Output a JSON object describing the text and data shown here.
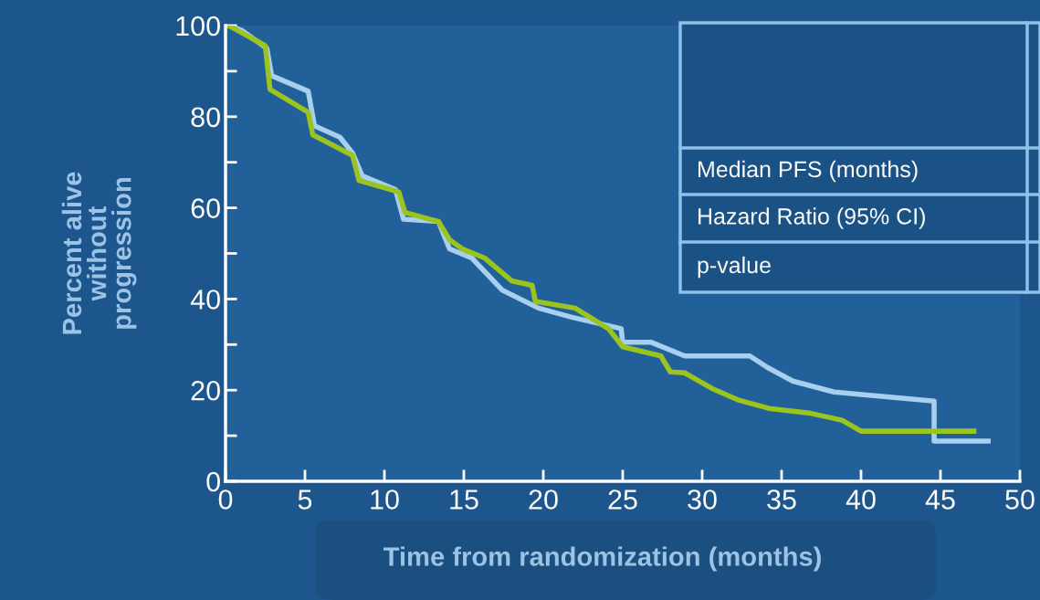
{
  "chart_data": {
    "type": "line",
    "xlabel": "Time from randomization (months)",
    "ylabel": "Percent alive\nwithout\nprogression",
    "xlim": [
      0,
      50
    ],
    "xticks": [
      0,
      5,
      10,
      15,
      20,
      25,
      30,
      35,
      40,
      45,
      50
    ],
    "ylim": [
      0,
      100
    ],
    "yticks": [
      0,
      {
        "value": 10,
        "label": null
      },
      20,
      {
        "value": 30,
        "label": null
      },
      40,
      {
        "value": 50,
        "label": null
      },
      60,
      {
        "value": 70,
        "label": null
      },
      80,
      {
        "value": 90,
        "label": null
      },
      100
    ],
    "series": [
      {
        "color": "#a9cfee",
        "x": [
          0,
          0.2,
          1,
          2.6,
          2.9,
          5.2,
          5.6,
          7.2,
          8,
          8.6,
          10.7,
          11.2,
          13.4,
          14.1,
          15.5,
          17.4,
          19.7,
          21.8,
          24.9,
          25,
          26.8,
          28.9,
          33.0,
          34.1,
          35.7,
          38.3,
          44.6,
          44.6,
          48
        ],
        "values": [
          100,
          100,
          99,
          95,
          89,
          85.6,
          78,
          75.5,
          72,
          67,
          64,
          57.5,
          57,
          51,
          49,
          42,
          38,
          36,
          33.5,
          30.5,
          30.5,
          27.5,
          27.5,
          25,
          22,
          19.6,
          17.6,
          8.8,
          8.8
        ]
      },
      {
        "color": "#9cc41e",
        "x": [
          0,
          0.2,
          2.5,
          2.8,
          5.2,
          5.5,
          8,
          8.4,
          10.9,
          11.3,
          13.4,
          14.1,
          14.9,
          16.3,
          18,
          19.3,
          19.5,
          22,
          24.1,
          25,
          27.4,
          28,
          28.9,
          30.6,
          32.3,
          34.2,
          36.7,
          38.8,
          40,
          47.1
        ],
        "values": [
          100,
          100,
          95.6,
          86,
          81,
          76,
          71.5,
          66,
          63.5,
          59,
          57,
          53,
          51,
          49,
          44,
          43,
          39.5,
          38,
          33.5,
          29.5,
          27.5,
          24,
          23.8,
          20.4,
          17.8,
          16,
          15,
          13.4,
          11,
          11
        ]
      }
    ],
    "annotations": [
      "Median PFS (months)",
      "Hazard Ratio (95% CI)",
      "p-value"
    ],
    "grid": false,
    "marker": "none",
    "line_style": "solid"
  }
}
